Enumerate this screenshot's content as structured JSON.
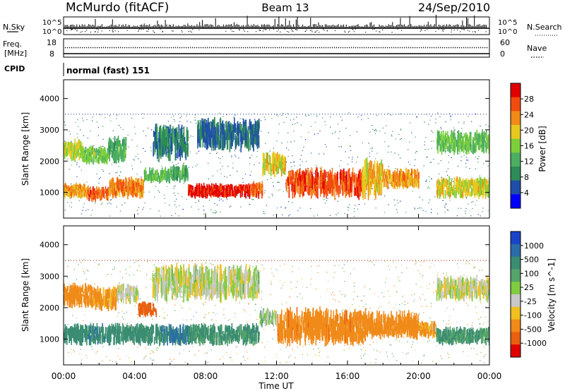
{
  "header": {
    "station": "McMurdo (fitACF)",
    "beam": "Beam 13",
    "date": "24/Sep/2010"
  },
  "noise_panel": {
    "left_label": "N.Sky",
    "right_label": "N.Search",
    "tick_top_left": "10^5",
    "tick_bottom_left": "10^0",
    "tick_top_right": "10^5",
    "tick_bottom_right": "10^0"
  },
  "freq_panel": {
    "left_label_1": "Freq.",
    "left_label_2": "[MHz]",
    "right_label": "Nave",
    "tick_left_top": "18",
    "tick_left_bottom": "8",
    "tick_right_top": "60",
    "tick_right_bottom": "0"
  },
  "cpid": {
    "label": "CPID",
    "value": "normal (fast) 151"
  },
  "colors": {
    "power_scale": [
      "#0000ff",
      "#1f4ea8",
      "#2e8b57",
      "#4cae62",
      "#7ccf3a",
      "#e6c81e",
      "#f08a18",
      "#f24b10",
      "#e00000"
    ],
    "velocity_scale": [
      "#1a44c8",
      "#2a6ca8",
      "#3a8c72",
      "#55a46a",
      "#80cc40",
      "#c8c8c8",
      "#f0c020",
      "#f08a18",
      "#e86010",
      "#e00000"
    ]
  },
  "chart_data": [
    {
      "type": "heatmap",
      "name": "power",
      "xlabel": "",
      "ylabel": "Slant Range [km]",
      "xlim": [
        0,
        24
      ],
      "ylim": [
        180,
        4600
      ],
      "yticks": [
        1000,
        2000,
        3000,
        4000
      ],
      "xticks_hours": [
        0,
        4,
        8,
        12,
        16,
        20,
        24
      ],
      "colorbar": {
        "label": "Power [dB]",
        "ticks": [
          "4",
          "8",
          "12",
          "16",
          "20",
          "24",
          "28"
        ],
        "range": [
          0,
          30
        ]
      },
      "features": [
        {
          "t0": 0.0,
          "t1": 1.0,
          "r0": 2000,
          "r1": 2700,
          "value": 17
        },
        {
          "t0": 1.0,
          "t1": 2.5,
          "r0": 1900,
          "r1": 2500,
          "value": 14
        },
        {
          "t0": 2.5,
          "t1": 3.5,
          "r0": 1900,
          "r1": 2800,
          "value": 11
        },
        {
          "t0": 0.0,
          "t1": 1.3,
          "r0": 800,
          "r1": 1300,
          "value": 21
        },
        {
          "t0": 1.3,
          "t1": 2.5,
          "r0": 700,
          "r1": 1200,
          "value": 24
        },
        {
          "t0": 2.5,
          "t1": 4.5,
          "r0": 800,
          "r1": 1500,
          "value": 22
        },
        {
          "t0": 4.5,
          "t1": 6.0,
          "r0": 1300,
          "r1": 1800,
          "value": 13
        },
        {
          "t0": 6.0,
          "t1": 7.0,
          "r0": 1300,
          "r1": 1900,
          "value": 11
        },
        {
          "t0": 7.0,
          "t1": 10.5,
          "r0": 800,
          "r1": 1300,
          "value": 28
        },
        {
          "t0": 10.5,
          "t1": 11.2,
          "r0": 800,
          "r1": 1350,
          "value": 24
        },
        {
          "t0": 11.2,
          "t1": 12.5,
          "r0": 1500,
          "r1": 2300,
          "value": 18
        },
        {
          "t0": 12.5,
          "t1": 16.8,
          "r0": 800,
          "r1": 1800,
          "value": 25
        },
        {
          "t0": 16.8,
          "t1": 18.0,
          "r0": 800,
          "r1": 2100,
          "value": 19
        },
        {
          "t0": 18.0,
          "t1": 20.0,
          "r0": 1100,
          "r1": 1800,
          "value": 21
        },
        {
          "t0": 21.0,
          "t1": 24.0,
          "r0": 800,
          "r1": 1500,
          "value": 18
        },
        {
          "t0": 21.0,
          "t1": 24.0,
          "r0": 2200,
          "r1": 3000,
          "value": 13
        },
        {
          "t0": 5.0,
          "t1": 7.0,
          "r0": 2000,
          "r1": 3200,
          "value": 8
        },
        {
          "t0": 7.5,
          "t1": 11.0,
          "r0": 2300,
          "r1": 3400,
          "value": 7
        }
      ]
    },
    {
      "type": "heatmap",
      "name": "velocity",
      "xlabel": "Time UT",
      "ylabel": "Slant Range [km]",
      "xlim": [
        0,
        24
      ],
      "ylim": [
        180,
        4600
      ],
      "yticks": [
        1000,
        2000,
        3000,
        4000
      ],
      "xticks": [
        "00:00",
        "04:00",
        "08:00",
        "12:00",
        "16:00",
        "20:00",
        "00:00"
      ],
      "colorbar": {
        "label": "Velocity [m s^-1]",
        "ticks": [
          "1000",
          "500",
          "100",
          "25",
          "-25",
          "-100",
          "-500",
          "-1000"
        ],
        "range": [
          -1000,
          1000
        ]
      },
      "features": [
        {
          "t0": 0.0,
          "t1": 1.5,
          "r0": 2000,
          "r1": 2800,
          "value": -200
        },
        {
          "t0": 1.5,
          "t1": 3.0,
          "r0": 1900,
          "r1": 2700,
          "value": -80
        },
        {
          "t0": 3.0,
          "t1": 4.2,
          "r0": 2100,
          "r1": 2800,
          "value": 0
        },
        {
          "t0": 4.2,
          "t1": 5.2,
          "r0": 1700,
          "r1": 2200,
          "value": -600
        },
        {
          "t0": 0.0,
          "t1": 3.0,
          "r0": 800,
          "r1": 1500,
          "value": 250
        },
        {
          "t0": 3.0,
          "t1": 5.5,
          "r0": 800,
          "r1": 1500,
          "value": 200
        },
        {
          "t0": 5.5,
          "t1": 7.0,
          "r0": 800,
          "r1": 1500,
          "value": 300
        },
        {
          "t0": 7.0,
          "t1": 11.0,
          "r0": 800,
          "r1": 1500,
          "value": 180
        },
        {
          "t0": 11.0,
          "t1": 12.0,
          "r0": 1400,
          "r1": 2000,
          "value": 30
        },
        {
          "t0": 12.0,
          "t1": 17.0,
          "r0": 800,
          "r1": 2000,
          "value": -250
        },
        {
          "t0": 17.0,
          "t1": 20.0,
          "r0": 1000,
          "r1": 1900,
          "value": -150
        },
        {
          "t0": 20.0,
          "t1": 21.0,
          "r0": 1000,
          "r1": 1600,
          "value": -80
        },
        {
          "t0": 21.0,
          "t1": 24.0,
          "r0": 800,
          "r1": 1400,
          "value": 150
        },
        {
          "t0": 21.0,
          "t1": 24.0,
          "r0": 2200,
          "r1": 3000,
          "value": 0
        },
        {
          "t0": 5.0,
          "t1": 11.0,
          "r0": 2200,
          "r1": 3400,
          "value": 5
        }
      ]
    }
  ]
}
